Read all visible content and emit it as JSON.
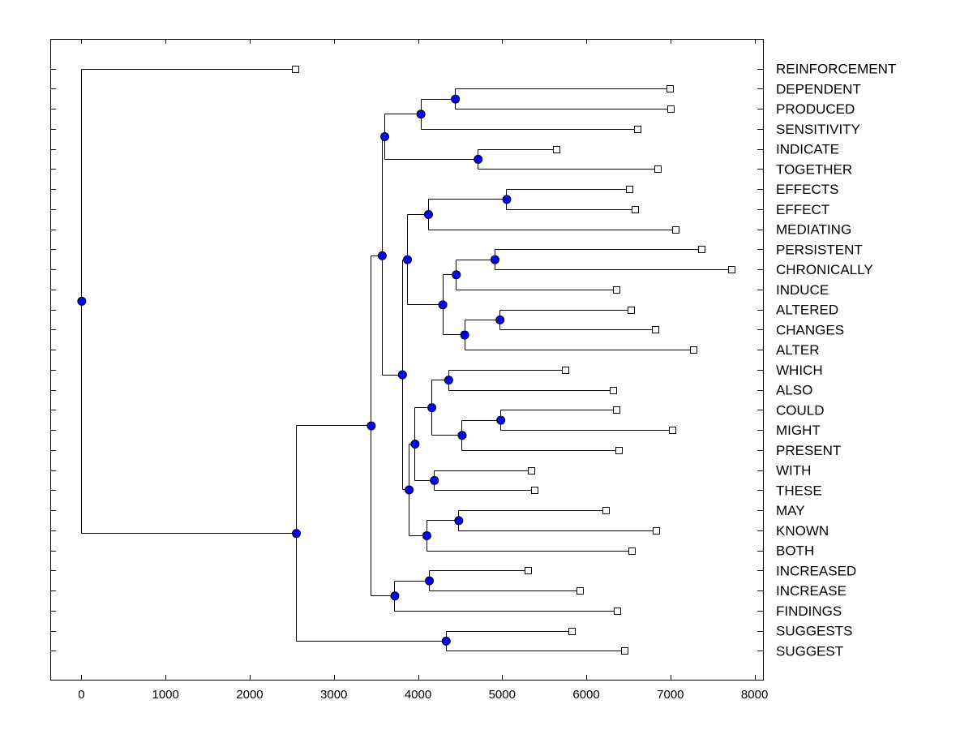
{
  "chart_data": {
    "type": "dendrogram",
    "title": "",
    "xlabel": "",
    "ylabel": "",
    "xlim": [
      -370,
      8100
    ],
    "x_ticks": [
      0,
      1000,
      2000,
      3000,
      4000,
      5000,
      6000,
      7000,
      8000
    ],
    "x_tick_labels": [
      "0",
      "1000",
      "2000",
      "3000",
      "4000",
      "5000",
      "6000",
      "7000",
      "8000"
    ],
    "colors": {
      "node": "#0000ff",
      "line": "#000000",
      "leaf_fill": "#ffffff"
    },
    "leaves": [
      {
        "label": "REINFORCEMENT",
        "x": 2540
      },
      {
        "label": "DEPENDENT",
        "x": 6990
      },
      {
        "label": "PRODUCED",
        "x": 7000
      },
      {
        "label": "SENSITIVITY",
        "x": 6610
      },
      {
        "label": "INDICATE",
        "x": 5640
      },
      {
        "label": "TOGETHER",
        "x": 6850
      },
      {
        "label": "EFFECTS",
        "x": 6510
      },
      {
        "label": "EFFECT",
        "x": 6580
      },
      {
        "label": "MEDIATING",
        "x": 7060
      },
      {
        "label": "PERSISTENT",
        "x": 7370
      },
      {
        "label": "CHRONICALLY",
        "x": 7720
      },
      {
        "label": "INDUCE",
        "x": 6360
      },
      {
        "label": "ALTERED",
        "x": 6530
      },
      {
        "label": "CHANGES",
        "x": 6820
      },
      {
        "label": "ALTER",
        "x": 7270
      },
      {
        "label": "WHICH",
        "x": 5750
      },
      {
        "label": "ALSO",
        "x": 6320
      },
      {
        "label": "COULD",
        "x": 6360
      },
      {
        "label": "MIGHT",
        "x": 7020
      },
      {
        "label": "PRESENT",
        "x": 6380
      },
      {
        "label": "WITH",
        "x": 5340
      },
      {
        "label": "THESE",
        "x": 5380
      },
      {
        "label": "MAY",
        "x": 6230
      },
      {
        "label": "KNOWN",
        "x": 6830
      },
      {
        "label": "BOTH",
        "x": 6540
      },
      {
        "label": "INCREASED",
        "x": 5310
      },
      {
        "label": "INCREASE",
        "x": 5920
      },
      {
        "label": "FINDINGS",
        "x": 6370
      },
      {
        "label": "SUGGESTS",
        "x": 5830
      },
      {
        "label": "SUGGEST",
        "x": 6450
      }
    ],
    "merges": [
      {
        "id": "n1",
        "x": 4440,
        "children": [
          "L1",
          "L2"
        ]
      },
      {
        "id": "n2",
        "x": 4030,
        "children": [
          "n1",
          "L3"
        ]
      },
      {
        "id": "n3",
        "x": 4710,
        "children": [
          "L4",
          "L5"
        ]
      },
      {
        "id": "n4",
        "x": 3600,
        "children": [
          "n2",
          "n3"
        ]
      },
      {
        "id": "n5",
        "x": 5050,
        "children": [
          "L6",
          "L7"
        ]
      },
      {
        "id": "n6",
        "x": 4120,
        "children": [
          "n5",
          "L8"
        ]
      },
      {
        "id": "n7",
        "x": 4910,
        "children": [
          "L9",
          "L10"
        ]
      },
      {
        "id": "n8",
        "x": 4450,
        "children": [
          "n7",
          "L11"
        ]
      },
      {
        "id": "n9",
        "x": 4970,
        "children": [
          "L12",
          "L13"
        ]
      },
      {
        "id": "n10",
        "x": 4550,
        "children": [
          "n9",
          "L14"
        ]
      },
      {
        "id": "n11",
        "x": 4290,
        "children": [
          "n8",
          "n10"
        ]
      },
      {
        "id": "n12",
        "x": 3870,
        "children": [
          "n6",
          "n11"
        ]
      },
      {
        "id": "n13",
        "x": 4360,
        "children": [
          "L15",
          "L16"
        ]
      },
      {
        "id": "n14",
        "x": 4980,
        "children": [
          "L17",
          "L18"
        ]
      },
      {
        "id": "n15",
        "x": 4520,
        "children": [
          "n14",
          "L19"
        ]
      },
      {
        "id": "n16",
        "x": 4160,
        "children": [
          "n13",
          "n15"
        ]
      },
      {
        "id": "n17",
        "x": 4190,
        "children": [
          "L20",
          "L21"
        ]
      },
      {
        "id": "n18",
        "x": 3960,
        "children": [
          "n16",
          "n17"
        ]
      },
      {
        "id": "n19",
        "x": 4480,
        "children": [
          "L22",
          "L23"
        ]
      },
      {
        "id": "n20",
        "x": 4100,
        "children": [
          "n19",
          "L24"
        ]
      },
      {
        "id": "n21",
        "x": 3890,
        "children": [
          "n18",
          "n20"
        ]
      },
      {
        "id": "n22",
        "x": 3810,
        "children": [
          "n12",
          "n21"
        ]
      },
      {
        "id": "n23",
        "x": 3570,
        "children": [
          "n4",
          "n22"
        ]
      },
      {
        "id": "n24",
        "x": 4130,
        "children": [
          "L25",
          "L26"
        ]
      },
      {
        "id": "n25",
        "x": 3720,
        "children": [
          "n24",
          "L27"
        ]
      },
      {
        "id": "n26",
        "x": 3440,
        "children": [
          "n23",
          "n25"
        ]
      },
      {
        "id": "n27",
        "x": 4330,
        "children": [
          "L28",
          "L29"
        ]
      },
      {
        "id": "n28",
        "x": 2550,
        "children": [
          "n26",
          "n27"
        ]
      },
      {
        "id": "n29",
        "x": 0,
        "children": [
          "L0",
          "n28"
        ]
      }
    ]
  }
}
